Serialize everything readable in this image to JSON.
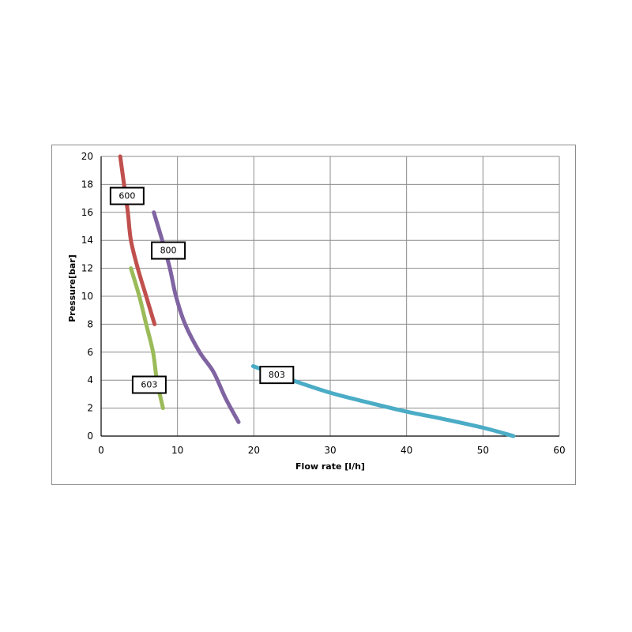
{
  "chart_data": {
    "type": "line",
    "title": "",
    "xlabel": "Flow rate [l/h]",
    "ylabel": "Pressure[bar]",
    "xlim": [
      0,
      60
    ],
    "ylim": [
      0,
      20
    ],
    "xticks": [
      0,
      10,
      20,
      30,
      40,
      50,
      60
    ],
    "yticks": [
      0,
      2,
      4,
      6,
      8,
      10,
      12,
      14,
      16,
      18,
      20
    ],
    "grid": true,
    "series": [
      {
        "name": "600",
        "color": "#C0504D",
        "points": [
          [
            2.5,
            20
          ],
          [
            3.0,
            18
          ],
          [
            3.5,
            16
          ],
          [
            3.9,
            14
          ],
          [
            4.8,
            12
          ],
          [
            5.9,
            10
          ],
          [
            7.0,
            8
          ]
        ]
      },
      {
        "name": "800",
        "color": "#8064A2",
        "points": [
          [
            6.9,
            16
          ],
          [
            8.0,
            14
          ],
          [
            9.0,
            12
          ],
          [
            9.8,
            10
          ],
          [
            11.0,
            8
          ],
          [
            12.9,
            6
          ],
          [
            14.7,
            4.6
          ],
          [
            16.3,
            2.7
          ],
          [
            18.0,
            1
          ]
        ]
      },
      {
        "name": "603",
        "color": "#9BBB59",
        "points": [
          [
            3.9,
            12
          ],
          [
            5.0,
            10
          ],
          [
            5.9,
            8
          ],
          [
            6.8,
            6
          ],
          [
            7.3,
            4
          ],
          [
            8.1,
            2
          ]
        ]
      },
      {
        "name": "803",
        "color": "#4BACC6",
        "points": [
          [
            19.9,
            5
          ],
          [
            25,
            4
          ],
          [
            30,
            3.1
          ],
          [
            35,
            2.4
          ],
          [
            40,
            1.75
          ],
          [
            45,
            1.2
          ],
          [
            50,
            0.6
          ],
          [
            54,
            0
          ]
        ]
      }
    ],
    "annotations": [
      {
        "text": "600",
        "at": [
          3.4,
          17.2
        ]
      },
      {
        "text": "800",
        "at": [
          8.8,
          13.3
        ]
      },
      {
        "text": "603",
        "at": [
          6.3,
          3.7
        ]
      },
      {
        "text": "803",
        "at": [
          23.0,
          4.4
        ]
      }
    ]
  }
}
